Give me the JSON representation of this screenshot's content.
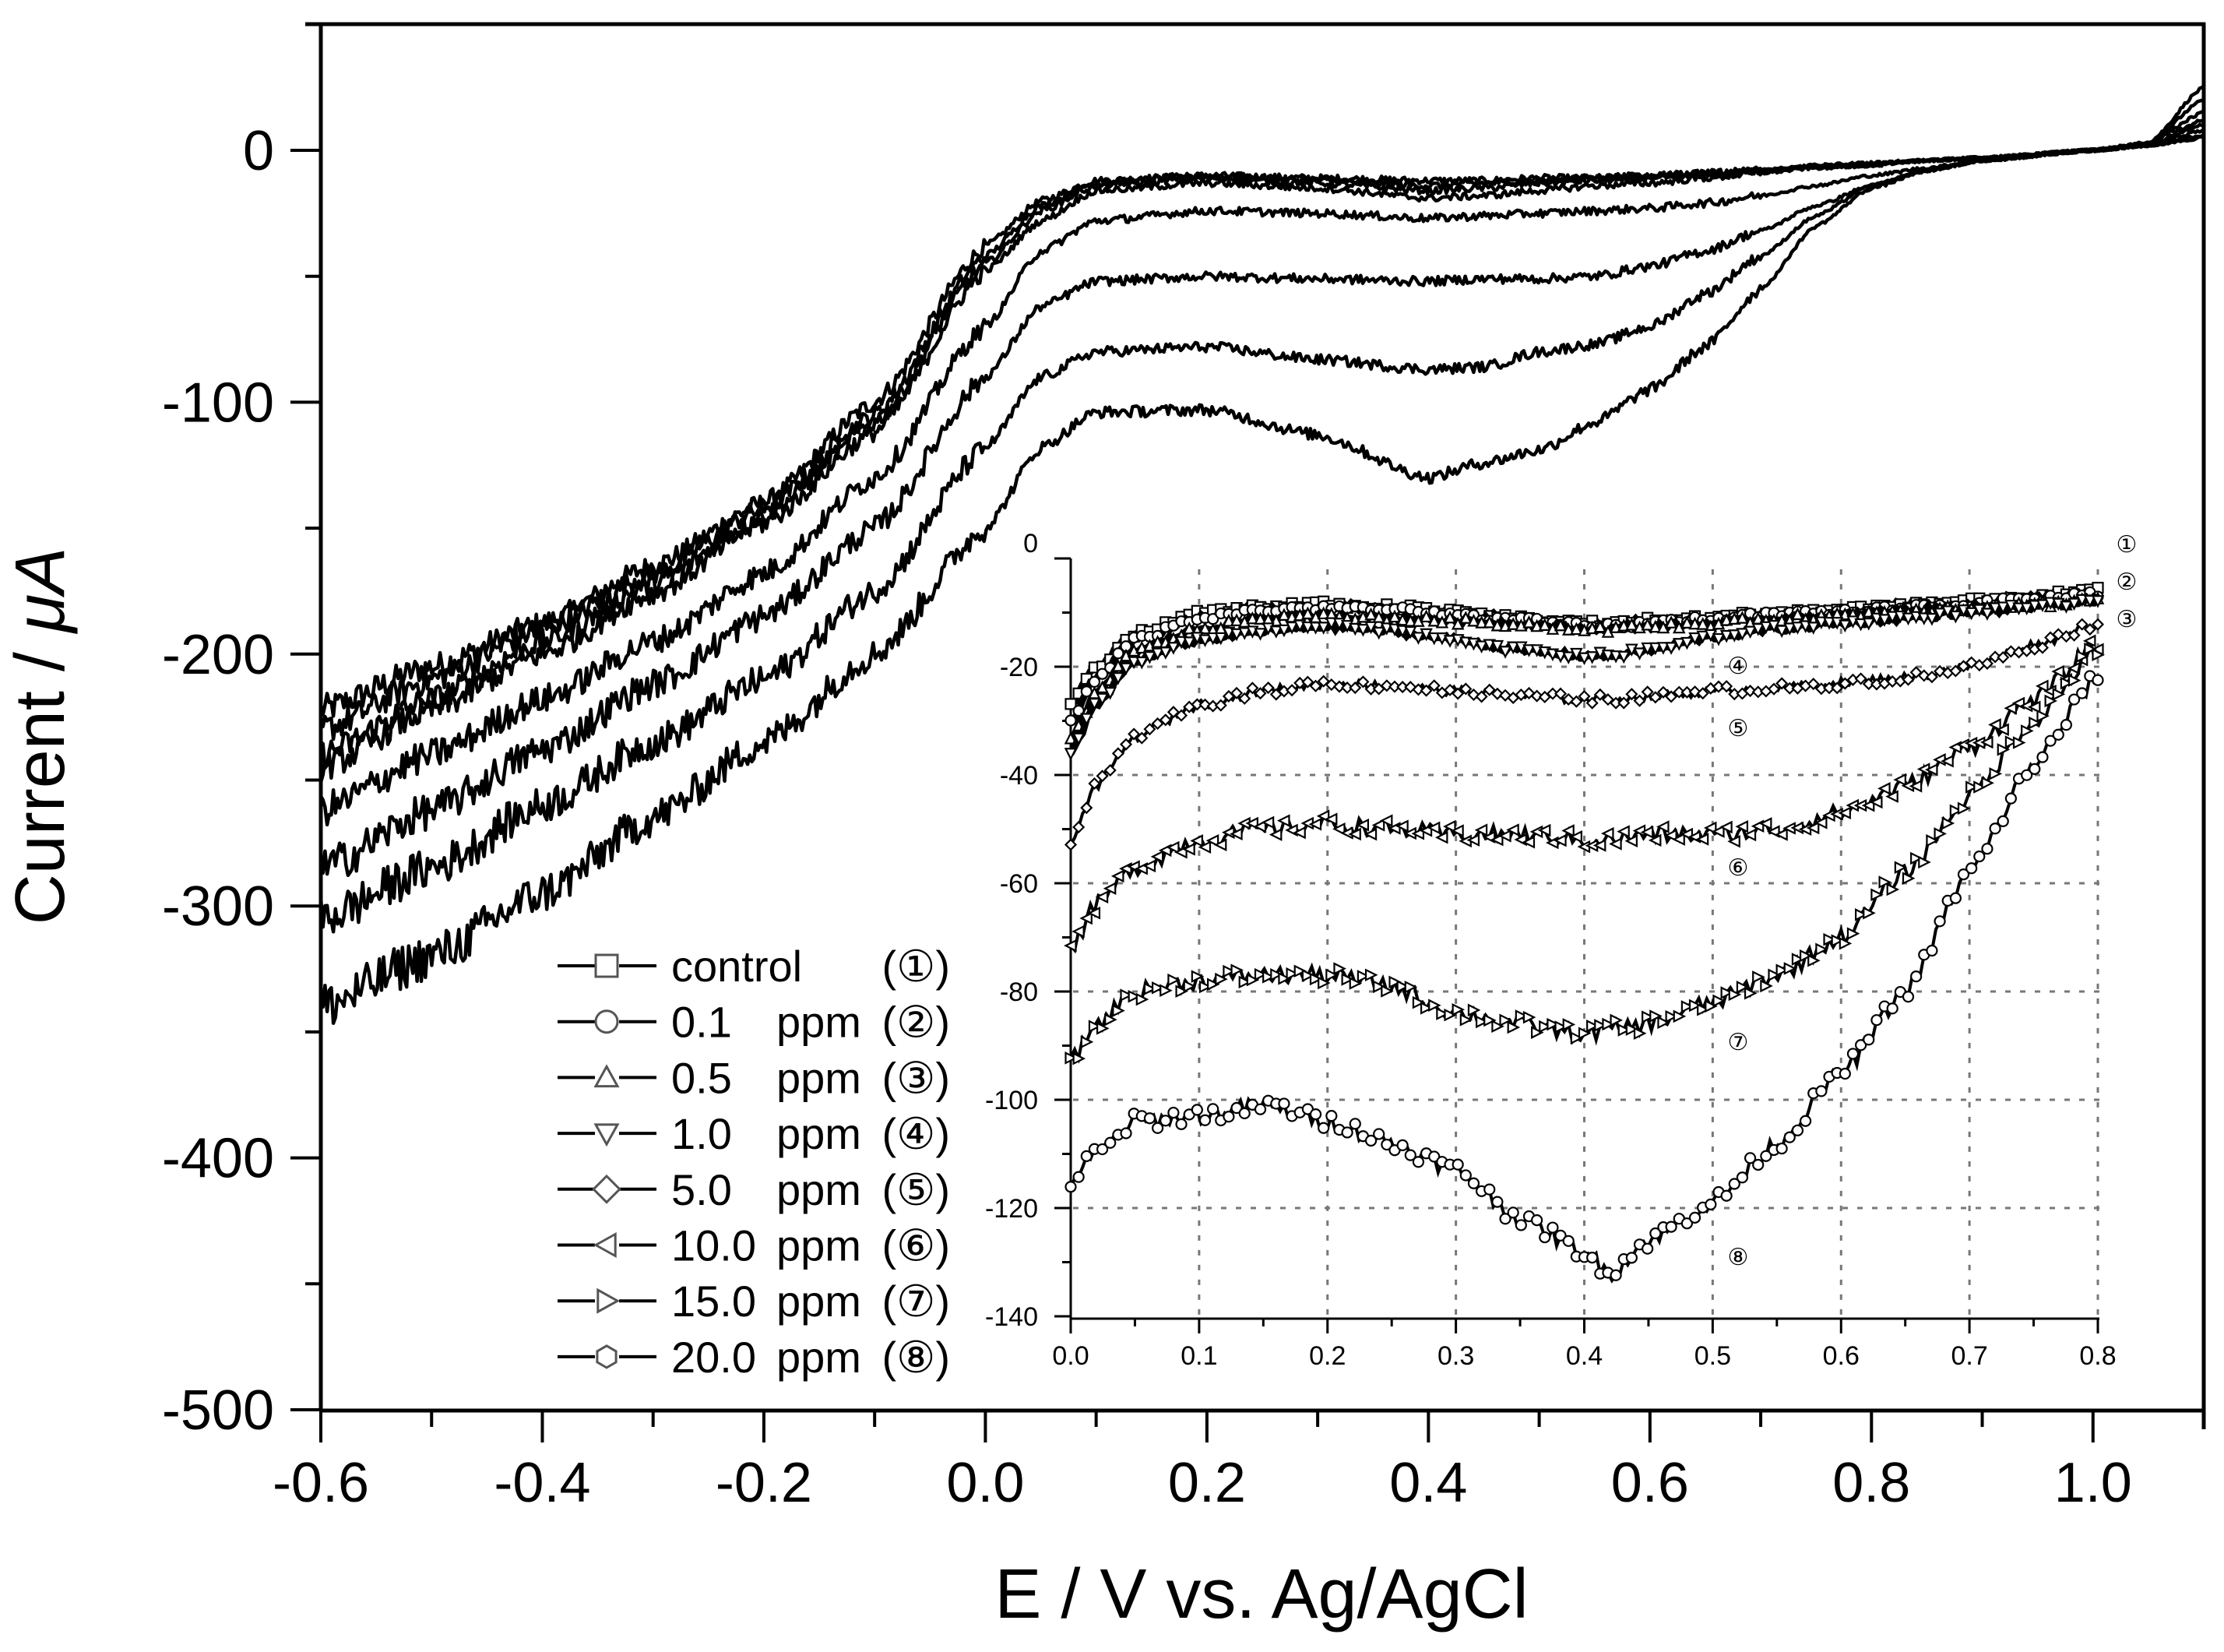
{
  "chart_data": {
    "type": "line",
    "title": "",
    "xlabel": "E / V vs. Ag/AgCl",
    "ylabel_main": "Current / ",
    "ylabel_unit": "μA",
    "xlim": [
      -0.6,
      1.1
    ],
    "ylim": [
      -500,
      50
    ],
    "x_ticks": [
      "-0.6",
      "-0.4",
      "-0.2",
      "0.0",
      "0.2",
      "0.4",
      "0.6",
      "0.8",
      "1.0"
    ],
    "x_tick_values": [
      -0.6,
      -0.4,
      -0.2,
      0.0,
      0.2,
      0.4,
      0.6,
      0.8,
      1.0
    ],
    "y_ticks": [
      "0",
      "-100",
      "-200",
      "-300",
      "-400",
      "-500"
    ],
    "y_tick_values": [
      0,
      -100,
      -200,
      -300,
      -400,
      -500
    ],
    "grid": false,
    "legend_placement": "bottom-center",
    "legend": [
      {
        "marker": "square",
        "value": "control",
        "unit": "",
        "tag": "(①)"
      },
      {
        "marker": "circle",
        "value": "0.1",
        "unit": "ppm",
        "tag": "(②)"
      },
      {
        "marker": "triangle-up",
        "value": "0.5",
        "unit": "ppm",
        "tag": "(③)"
      },
      {
        "marker": "triangle-down",
        "value": "1.0",
        "unit": "ppm",
        "tag": "(④)"
      },
      {
        "marker": "diamond",
        "value": "5.0",
        "unit": "ppm",
        "tag": "(⑤)"
      },
      {
        "marker": "triangle-left",
        "value": "10.0",
        "unit": "ppm",
        "tag": "(⑥)"
      },
      {
        "marker": "triangle-right",
        "value": "15.0",
        "unit": "ppm",
        "tag": "(⑦)"
      },
      {
        "marker": "hexagon",
        "value": "20.0",
        "unit": "ppm",
        "tag": "(⑧)"
      }
    ],
    "x": [
      -0.6,
      -0.5,
      -0.4,
      -0.3,
      -0.2,
      -0.1,
      0.0,
      0.05,
      0.1,
      0.2,
      0.3,
      0.4,
      0.45,
      0.5,
      0.55,
      0.6,
      0.65,
      0.7,
      0.75,
      0.8,
      0.85,
      0.9,
      1.0,
      1.05,
      1.1
    ],
    "series": [
      {
        "name": "control",
        "values": [
          -222,
          -205,
          -188,
          -165,
          -140,
          -100,
          -38,
          -20,
          -12,
          -10,
          -11,
          -12,
          -12,
          -11,
          -11,
          -10,
          -9,
          -8,
          -6,
          -5,
          -4,
          -3,
          0,
          3,
          25
        ]
      },
      {
        "name": "0.1 ppm",
        "values": [
          -230,
          -210,
          -190,
          -168,
          -142,
          -105,
          -42,
          -22,
          -13,
          -10,
          -12,
          -14,
          -13,
          -12,
          -11,
          -10,
          -9,
          -8,
          -6,
          -5,
          -4,
          -3,
          0,
          3,
          20
        ]
      },
      {
        "name": "0.5 ppm",
        "values": [
          -240,
          -218,
          -195,
          -172,
          -145,
          -108,
          -45,
          -24,
          -14,
          -11,
          -13,
          -16,
          -15,
          -13,
          -12,
          -11,
          -10,
          -8,
          -7,
          -6,
          -4,
          -3,
          0,
          3,
          15
        ]
      },
      {
        "name": "1.0 ppm",
        "values": [
          -245,
          -222,
          -200,
          -176,
          -148,
          -112,
          -48,
          -28,
          -16,
          -13,
          -15,
          -19,
          -18,
          -16,
          -14,
          -13,
          -11,
          -9,
          -7,
          -6,
          -4,
          -3,
          0,
          2,
          12
        ]
      },
      {
        "name": "5.0 ppm",
        "values": [
          -262,
          -240,
          -218,
          -195,
          -168,
          -130,
          -70,
          -40,
          -28,
          -24,
          -25,
          -27,
          -26,
          -25,
          -24,
          -23,
          -21,
          -18,
          -14,
          -10,
          -7,
          -4,
          0,
          2,
          10
        ]
      },
      {
        "name": "10.0 ppm",
        "values": [
          -285,
          -262,
          -238,
          -212,
          -185,
          -150,
          -90,
          -62,
          -52,
          -50,
          -51,
          -52,
          -51,
          -51,
          -50,
          -46,
          -40,
          -32,
          -22,
          -14,
          -8,
          -4,
          0,
          2,
          8
        ]
      },
      {
        "name": "15.0 ppm",
        "values": [
          -305,
          -285,
          -260,
          -235,
          -210,
          -175,
          -118,
          -90,
          -80,
          -78,
          -83,
          -87,
          -86,
          -80,
          -77,
          -70,
          -57,
          -42,
          -26,
          -14,
          -8,
          -4,
          0,
          2,
          6
        ]
      },
      {
        "name": "20.0 ppm",
        "values": [
          -340,
          -320,
          -295,
          -265,
          -235,
          -200,
          -150,
          -118,
          -104,
          -103,
          -113,
          -130,
          -124,
          -119,
          -108,
          -95,
          -78,
          -55,
          -30,
          -15,
          -8,
          -4,
          0,
          2,
          5
        ]
      }
    ],
    "inset": {
      "xlim": [
        0.0,
        0.8
      ],
      "ylim": [
        -140,
        0
      ],
      "x_ticks": [
        "0.0",
        "0.1",
        "0.2",
        "0.3",
        "0.4",
        "0.5",
        "0.6",
        "0.7",
        "0.8"
      ],
      "x_tick_values": [
        0.0,
        0.1,
        0.2,
        0.3,
        0.4,
        0.5,
        0.6,
        0.7,
        0.8
      ],
      "y_ticks": [
        "0",
        "-20",
        "-40",
        "-60",
        "-80",
        "-100",
        "-120",
        "-140"
      ],
      "y_tick_values": [
        0,
        -20,
        -40,
        -60,
        -80,
        -100,
        -120,
        -140
      ],
      "grid": true,
      "x": [
        0.0,
        0.02,
        0.05,
        0.1,
        0.15,
        0.2,
        0.25,
        0.3,
        0.35,
        0.4,
        0.42,
        0.45,
        0.5,
        0.55,
        0.6,
        0.65,
        0.7,
        0.75,
        0.8
      ],
      "series": [
        {
          "name": "control",
          "label": "①",
          "values": [
            -27,
            -20,
            -14,
            -10,
            -9,
            -8.5,
            -9,
            -10,
            -11,
            -12,
            -12,
            -11.5,
            -11,
            -10,
            -9.5,
            -8.5,
            -8,
            -7,
            -6
          ]
        },
        {
          "name": "0.1 ppm",
          "label": "②",
          "values": [
            -30,
            -22,
            -15,
            -11,
            -9.5,
            -9,
            -9.5,
            -10.5,
            -11.5,
            -12.5,
            -12.5,
            -12,
            -11,
            -10.5,
            -10,
            -9,
            -8.5,
            -7.5,
            -6.5
          ]
        },
        {
          "name": "0.5 ppm",
          "label": "③",
          "values": [
            -33,
            -25,
            -17,
            -13,
            -11,
            -10.5,
            -11,
            -11.5,
            -12,
            -13,
            -13,
            -12.5,
            -12,
            -11,
            -10.5,
            -9.5,
            -9,
            -8.5,
            -7.5
          ]
        },
        {
          "name": "1.0 ppm",
          "label": "④",
          "values": [
            -36,
            -27,
            -19,
            -15,
            -13.5,
            -12.5,
            -13.5,
            -15,
            -17,
            -18,
            -18,
            -17,
            -14.5,
            -13,
            -12,
            -11,
            -10,
            -9,
            -8
          ]
        },
        {
          "name": "5.0 ppm",
          "label": "⑤",
          "values": [
            -52,
            -42,
            -33,
            -27,
            -24.5,
            -23,
            -23.5,
            -24.5,
            -25.5,
            -26,
            -26,
            -25.5,
            -24.5,
            -24,
            -23,
            -22,
            -20,
            -16,
            -12
          ]
        },
        {
          "name": "10.0 ppm",
          "label": "⑥",
          "values": [
            -72,
            -64,
            -57,
            -52,
            -50,
            -49,
            -50,
            -51,
            -51,
            -52,
            -52,
            -51,
            -51,
            -50,
            -47,
            -42,
            -35,
            -26,
            -16
          ]
        },
        {
          "name": "15.0 ppm",
          "label": "⑦",
          "values": [
            -93,
            -86,
            -80,
            -78,
            -77,
            -77,
            -79,
            -84,
            -86,
            -88,
            -87,
            -86,
            -82,
            -77,
            -70,
            -58,
            -44,
            -30,
            -17
          ]
        },
        {
          "name": "20.0 ppm",
          "label": "⑧",
          "values": [
            -115,
            -110,
            -104,
            -103,
            -101,
            -104,
            -108,
            -113,
            -122,
            -128,
            -132,
            -126,
            -119,
            -108,
            -95,
            -80,
            -58,
            -38,
            -22
          ]
        }
      ],
      "curve_labels": [
        "①",
        "②",
        "③",
        "④",
        "⑤",
        "⑥",
        "⑦",
        "⑧"
      ]
    }
  }
}
